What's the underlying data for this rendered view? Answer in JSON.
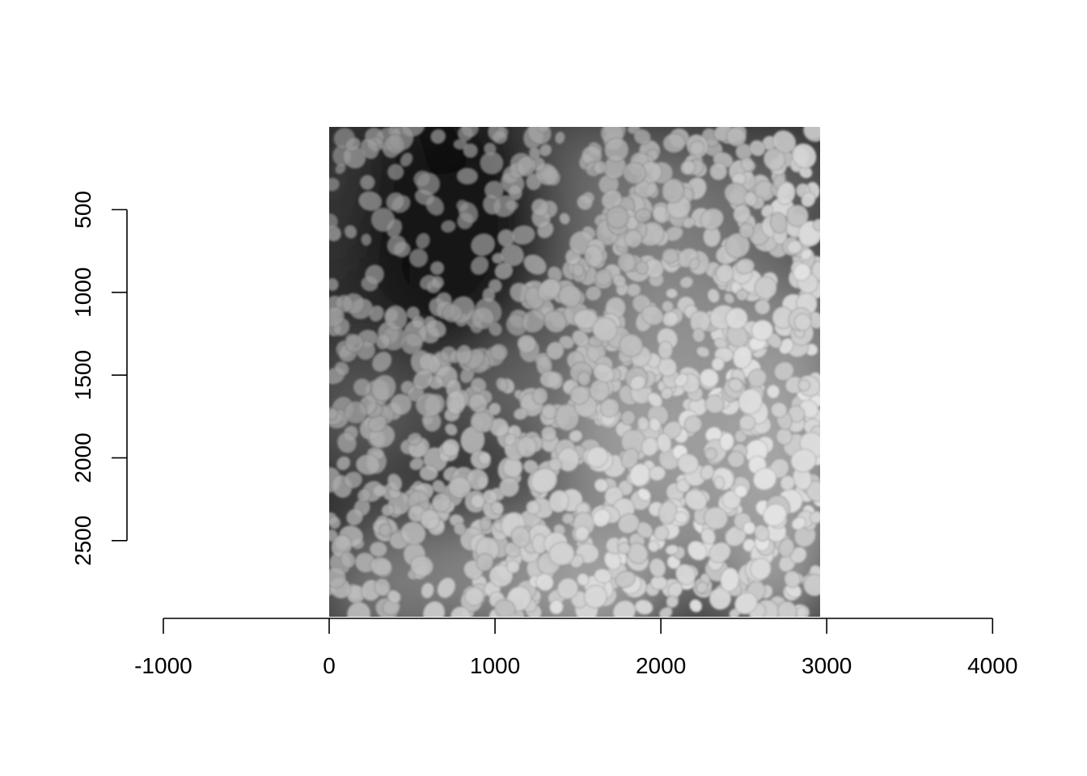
{
  "figure": {
    "type": "raster-image-plot",
    "image_description_kind": "grayscale fluorescence microscopy (cell nuclei)",
    "image_extent": {
      "x": [
        0,
        2960
      ],
      "y": [
        0,
        2960
      ]
    },
    "x_axis": {
      "range": [
        -1000,
        4000
      ],
      "ticks": [
        -1000,
        0,
        1000,
        2000,
        3000,
        4000
      ],
      "tick_labels": [
        "-1000",
        "0",
        "1000",
        "2000",
        "3000",
        "4000"
      ]
    },
    "y_axis": {
      "range": [
        500,
        2500
      ],
      "ticks": [
        500,
        1000,
        1500,
        2000,
        2500
      ],
      "tick_labels": [
        "500",
        "1000",
        "1500",
        "2000",
        "2500"
      ],
      "orientation": "rotated-labels"
    }
  }
}
